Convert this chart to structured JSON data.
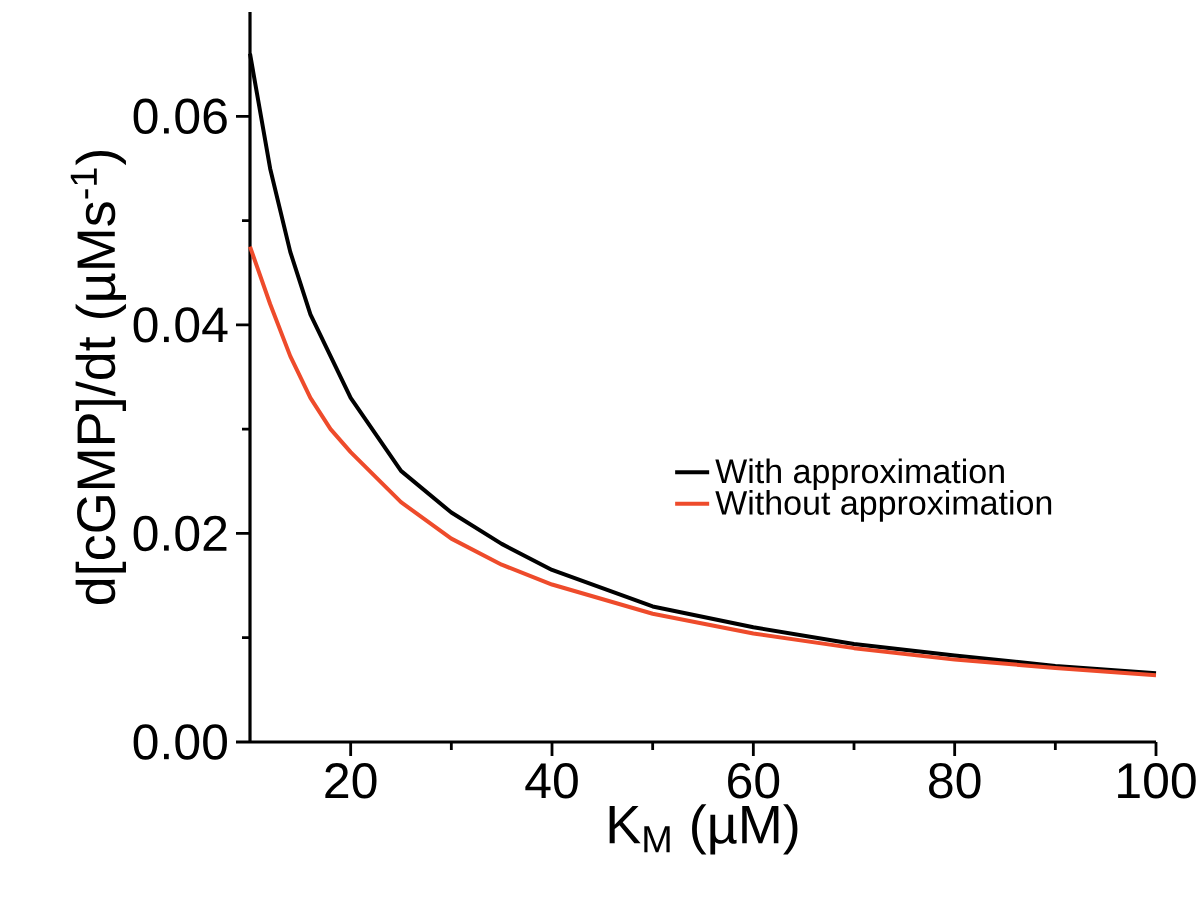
{
  "chart_data": {
    "type": "line",
    "xlabel": "K$_{M}$ (µM)",
    "ylabel": "d[cGMP]/dt (µMs$^{-1}$)",
    "xlim": [
      10,
      100
    ],
    "ylim": [
      0,
      0.07
    ],
    "xticks": [
      20,
      40,
      60,
      80,
      100
    ],
    "yticks": [
      {
        "value": 0,
        "label": "0.00"
      },
      {
        "value": 0.02,
        "label": "0.02"
      },
      {
        "value": 0.04,
        "label": "0.04"
      },
      {
        "value": 0.06,
        "label": "0.06"
      }
    ],
    "x": [
      10,
      12,
      14,
      16,
      18,
      20,
      25,
      30,
      35,
      40,
      50,
      60,
      70,
      80,
      90,
      100
    ],
    "series": [
      {
        "name": "With approximation",
        "color": "#000000",
        "values": [
          0.066,
          0.055,
          0.047,
          0.041,
          0.037,
          0.033,
          0.026,
          0.022,
          0.019,
          0.0165,
          0.013,
          0.011,
          0.0094,
          0.0083,
          0.0073,
          0.0066
        ]
      },
      {
        "name": "Without approximation",
        "color": "#ee4b2b",
        "values": [
          0.0475,
          0.042,
          0.037,
          0.033,
          0.03,
          0.0278,
          0.023,
          0.0195,
          0.017,
          0.0151,
          0.0123,
          0.0104,
          0.009,
          0.0079,
          0.0071,
          0.0064
        ]
      }
    ],
    "legend": "right",
    "grid": false,
    "marker": "none",
    "line_style": "solid"
  }
}
